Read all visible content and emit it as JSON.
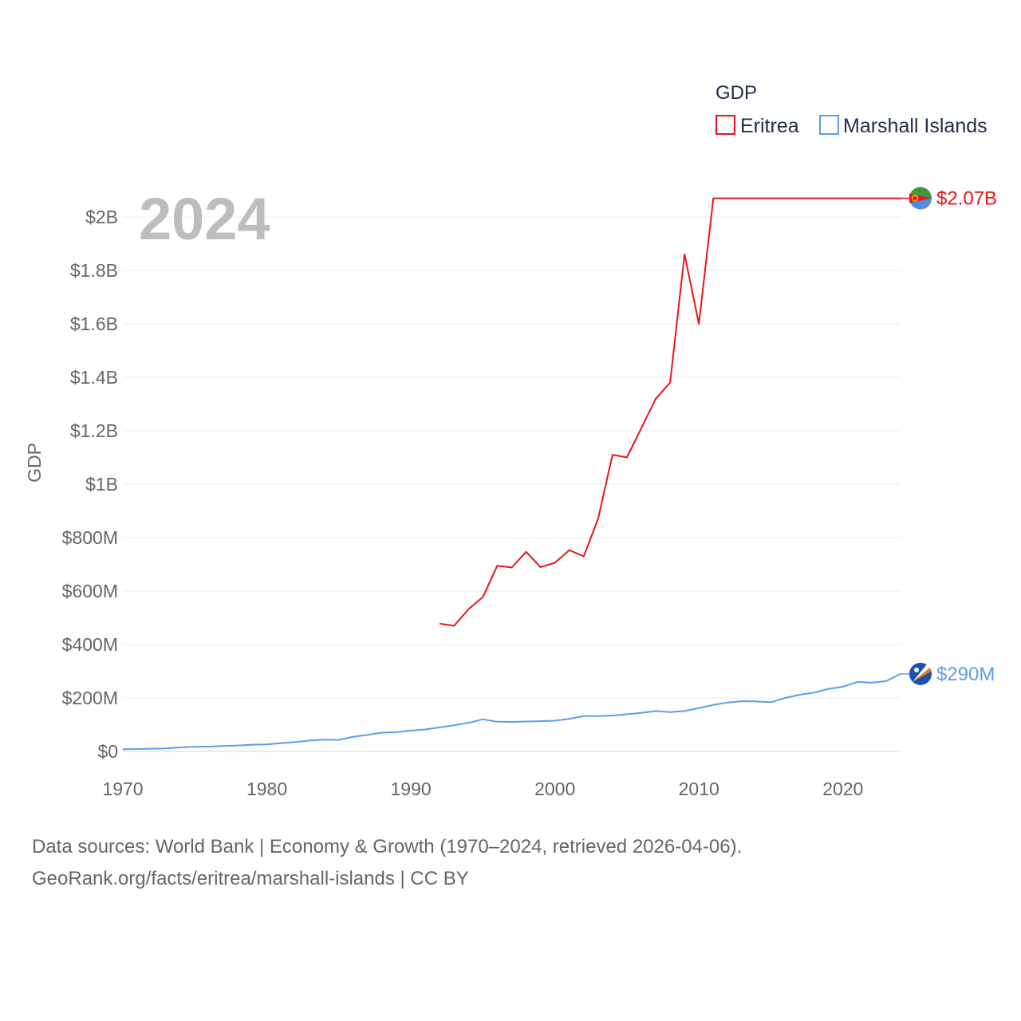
{
  "chart_data": {
    "type": "line",
    "ylabel": "GDP",
    "year_label": "2024",
    "legend_title": "GDP",
    "xlim": [
      1970,
      2024
    ],
    "ylim": [
      0,
      2000000000
    ],
    "x_ticks": [
      1970,
      1980,
      1990,
      2000,
      2010,
      2020
    ],
    "x_tick_labels": [
      "1970",
      "1980",
      "1990",
      "2000",
      "2010",
      "2020"
    ],
    "y_ticks": [
      0,
      200000000,
      400000000,
      600000000,
      800000000,
      1000000000,
      1200000000,
      1400000000,
      1600000000,
      1800000000,
      2000000000
    ],
    "y_tick_labels": [
      "$0",
      "$200M",
      "$400M",
      "$600M",
      "$800M",
      "$1B",
      "$1.2B",
      "$1.4B",
      "$1.6B",
      "$1.8B",
      "$2B"
    ],
    "series": [
      {
        "name": "Eritrea",
        "color": "#e8141b",
        "end_label": "$2.07B",
        "flag_icon": "eritrea-flag-icon",
        "x": [
          1992,
          1993,
          1994,
          1995,
          1996,
          1997,
          1998,
          1999,
          2000,
          2001,
          2002,
          2003,
          2004,
          2005,
          2006,
          2007,
          2008,
          2009,
          2010,
          2011,
          2012,
          2013,
          2014,
          2015,
          2016,
          2017,
          2018,
          2019,
          2020,
          2021,
          2022,
          2023,
          2024
        ],
        "values": [
          478000000,
          470000000,
          532000000,
          578000000,
          695000000,
          688000000,
          747000000,
          690000000,
          706000000,
          753000000,
          730000000,
          870000000,
          1110000000,
          1100000000,
          1210000000,
          1320000000,
          1380000000,
          1860000000,
          1600000000,
          2070000000,
          2070000000,
          2070000000,
          2070000000,
          2070000000,
          2070000000,
          2070000000,
          2070000000,
          2070000000,
          2070000000,
          2070000000,
          2070000000,
          2070000000,
          2070000000
        ]
      },
      {
        "name": "Marshall Islands",
        "color": "#5b9ee6",
        "end_label": "$290M",
        "flag_icon": "marshall-islands-flag-icon",
        "x": [
          1970,
          1971,
          1972,
          1973,
          1974,
          1975,
          1976,
          1977,
          1978,
          1979,
          1980,
          1981,
          1982,
          1983,
          1984,
          1985,
          1986,
          1987,
          1988,
          1989,
          1990,
          1991,
          1992,
          1993,
          1994,
          1995,
          1996,
          1997,
          1998,
          1999,
          2000,
          2001,
          2002,
          2003,
          2004,
          2005,
          2006,
          2007,
          2008,
          2009,
          2010,
          2011,
          2012,
          2013,
          2014,
          2015,
          2016,
          2017,
          2018,
          2019,
          2020,
          2021,
          2022,
          2023,
          2024
        ],
        "values": [
          8000000,
          9000000,
          10000000,
          11000000,
          15000000,
          17000000,
          18000000,
          20000000,
          22000000,
          25000000,
          26000000,
          31000000,
          35000000,
          41000000,
          44000000,
          43000000,
          55000000,
          62000000,
          70000000,
          72000000,
          78000000,
          82000000,
          90000000,
          98000000,
          107000000,
          120000000,
          111000000,
          110000000,
          112000000,
          113000000,
          115000000,
          122000000,
          132000000,
          132000000,
          134000000,
          139000000,
          144000000,
          151000000,
          147000000,
          151000000,
          162000000,
          174000000,
          183000000,
          188000000,
          187000000,
          184000000,
          200000000,
          212000000,
          220000000,
          234000000,
          242000000,
          260000000,
          257000000,
          263000000,
          290000000
        ]
      }
    ]
  },
  "source": {
    "line1": "Data sources: World Bank | Economy & Growth (1970–2024, retrieved 2026-04-06).",
    "line2": "GeoRank.org/facts/eritrea/marshall-islands | CC BY"
  }
}
